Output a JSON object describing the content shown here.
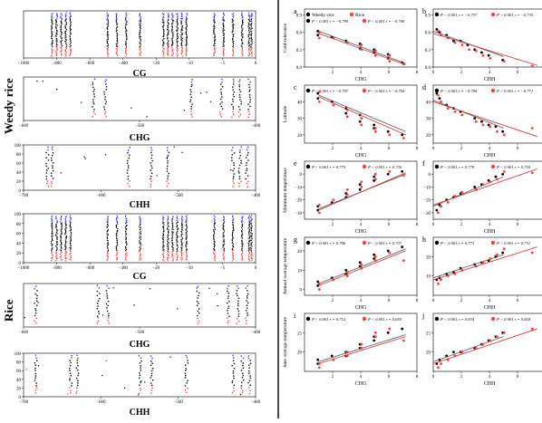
{
  "left_group_labels": [
    "Weedy rice",
    "Rice"
  ],
  "colors": {
    "black": "#000000",
    "blue": "#3333ff",
    "red": "#ff4040",
    "line_black": "#555555",
    "line_red": "#d03030"
  },
  "chart_data": [
    {
      "id": "L1",
      "type": "scatter",
      "xlabel": "CG",
      "xticks": [
        "−1000",
        "−800",
        "−600",
        "−400",
        "−20",
        "−10",
        "−5",
        "0"
      ]
    },
    {
      "id": "L2",
      "type": "scatter",
      "xlabel": "CHG",
      "xticks": [
        "−840",
        "−500",
        "−400"
      ]
    },
    {
      "id": "L3",
      "type": "scatter",
      "xlabel": "CHH",
      "yticks": [
        "0",
        "20",
        "40",
        "60",
        "80",
        "100"
      ],
      "xticks": [
        "−700",
        "−600",
        "−500",
        "−400"
      ]
    },
    {
      "id": "L4",
      "type": "scatter",
      "xlabel": "CG",
      "yticks": [
        "0",
        "20",
        "40",
        "60",
        "80",
        "100"
      ],
      "xticks": [
        "−1000",
        "−800",
        "−600",
        "−400",
        "−20",
        "−10",
        "−5",
        "0"
      ]
    },
    {
      "id": "L5",
      "type": "scatter",
      "xlabel": "CHG",
      "xticks": [
        "−840",
        "−500",
        "−400"
      ]
    },
    {
      "id": "L6",
      "type": "scatter",
      "xlabel": "CHH",
      "yticks": [
        "0",
        "20",
        "40",
        "60",
        "80",
        "100"
      ],
      "xticks": [
        "−700",
        "−600",
        "−500",
        "−400"
      ]
    },
    {
      "id": "a",
      "type": "scatter",
      "xlabel": "CHG",
      "ylabel": "Cold-tolerance",
      "xticks": [
        "2",
        "4",
        "6",
        "8"
      ],
      "yticks": [
        "0.0",
        "0.3",
        "0.6",
        "0.9"
      ],
      "xlim": [
        0,
        8
      ],
      "ylim": [
        0,
        1.0
      ],
      "legend": [
        {
          "label": "Weedy rice",
          "color": "black"
        },
        {
          "label": "Rice",
          "color": "red"
        }
      ],
      "stats": [
        "P < 0.001  r = −0.790",
        "P < 0.001  r = −0.740"
      ],
      "series": [
        {
          "name": "Weedy rice",
          "color": "black",
          "x": [
            1,
            1,
            2,
            3,
            4,
            4,
            5,
            5,
            6,
            6,
            7
          ],
          "y": [
            0.62,
            0.55,
            0.52,
            0.45,
            0.4,
            0.32,
            0.3,
            0.25,
            0.22,
            0.15,
            0.08
          ],
          "fit": [
            [
              1,
              0.62
            ],
            [
              7.2,
              0.06
            ]
          ]
        },
        {
          "name": "Rice",
          "color": "red",
          "x": [
            1,
            1,
            2,
            3,
            4,
            4,
            5,
            5,
            6,
            6,
            7
          ],
          "y": [
            0.6,
            0.5,
            0.5,
            0.42,
            0.38,
            0.3,
            0.28,
            0.2,
            0.2,
            0.1,
            0.05
          ],
          "fit": [
            [
              1,
              0.58
            ],
            [
              7.2,
              0.04
            ]
          ]
        }
      ]
    },
    {
      "id": "b",
      "type": "scatter",
      "xlabel": "CHH",
      "xticks": [
        "0",
        "2",
        "4",
        "6",
        "8"
      ],
      "yticks": [
        "0.0",
        "0.3",
        "0.6",
        "0.9"
      ],
      "xlim": [
        0,
        8
      ],
      "ylim": [
        0,
        1.0
      ],
      "stats": [
        "P < 0.001  r = −0.757",
        "P < 0.001  r = −0.735"
      ],
      "series": [
        {
          "color": "black",
          "x": [
            0.3,
            0.5,
            1,
            1.5,
            2,
            2.5,
            3,
            3.5,
            4,
            5
          ],
          "y": [
            0.65,
            0.6,
            0.55,
            0.45,
            0.45,
            0.38,
            0.3,
            0.25,
            0.2,
            0.12
          ],
          "fit": [
            [
              0,
              0.62
            ],
            [
              5,
              0.18
            ]
          ]
        },
        {
          "color": "red",
          "x": [
            0.3,
            0.5,
            1,
            1.5,
            2,
            2.5,
            3,
            3.5,
            4,
            5,
            7
          ],
          "y": [
            0.62,
            0.55,
            0.5,
            0.42,
            0.38,
            0.3,
            0.28,
            0.2,
            0.15,
            0.1,
            0.02
          ],
          "fit": [
            [
              0,
              0.58
            ],
            [
              7.4,
              0.03
            ]
          ]
        }
      ]
    },
    {
      "id": "c",
      "type": "scatter",
      "xlabel": "CHG",
      "ylabel": "Latitude",
      "xticks": [
        "2",
        "4",
        "6",
        "8"
      ],
      "yticks": [
        "20",
        "30",
        "40"
      ],
      "xlim": [
        0,
        8
      ],
      "ylim": [
        15,
        50
      ],
      "stats": [
        "P < 0.001  r = −0.797",
        "P < 0.001  r = −0.754"
      ],
      "series": [
        {
          "color": "black",
          "x": [
            1,
            1,
            2,
            3,
            3,
            4,
            4,
            5,
            5,
            6,
            7
          ],
          "y": [
            45,
            42,
            40,
            36,
            33,
            32,
            28,
            26,
            24,
            22,
            20
          ],
          "fit": [
            [
              1,
              44
            ],
            [
              7.2,
              22
            ]
          ]
        },
        {
          "color": "red",
          "x": [
            1,
            1,
            2,
            3,
            3,
            4,
            4,
            5,
            5,
            6,
            7
          ],
          "y": [
            46,
            40,
            38,
            35,
            31,
            30,
            26,
            24,
            22,
            20,
            18
          ],
          "fit": [
            [
              1,
              43
            ],
            [
              7.2,
              20
            ]
          ]
        }
      ]
    },
    {
      "id": "d",
      "type": "scatter",
      "xlabel": "CHH",
      "xticks": [
        "0",
        "2",
        "4",
        "6",
        "8"
      ],
      "yticks": [
        "20",
        "30",
        "40"
      ],
      "xlim": [
        0,
        8
      ],
      "ylim": [
        15,
        50
      ],
      "stats": [
        "P < 0.001  r = −0.794",
        "P < 0.001  r = −0.771"
      ],
      "series": [
        {
          "color": "black",
          "x": [
            0.3,
            0.5,
            1,
            1.5,
            2,
            3,
            3.5,
            4,
            4.5,
            5
          ],
          "y": [
            45,
            42,
            38,
            36,
            34,
            30,
            28,
            26,
            25,
            22
          ],
          "fit": [
            [
              0,
              41
            ],
            [
              5,
              24
            ]
          ]
        },
        {
          "color": "red",
          "x": [
            0.3,
            0.5,
            1,
            1.5,
            2,
            3,
            3.5,
            4,
            4.5,
            5,
            7
          ],
          "y": [
            44,
            40,
            36,
            34,
            32,
            28,
            26,
            25,
            22,
            20,
            24
          ],
          "fit": [
            [
              0,
              40
            ],
            [
              7.4,
              19
            ]
          ]
        }
      ]
    },
    {
      "id": "e",
      "type": "scatter",
      "xlabel": "CHG",
      "ylabel": "Minimum temperature",
      "xticks": [
        "2",
        "4",
        "6",
        "8"
      ],
      "yticks": [
        "−30",
        "−20",
        "−10",
        "0"
      ],
      "xlim": [
        0,
        8
      ],
      "ylim": [
        -35,
        10
      ],
      "stats": [
        "P < 0.001  r = 0.775",
        "P < 0.001  r = 0.730"
      ],
      "series": [
        {
          "color": "black",
          "x": [
            1,
            1,
            2,
            3,
            3,
            4,
            4,
            5,
            5,
            6,
            7
          ],
          "y": [
            -28,
            -25,
            -22,
            -18,
            -15,
            -12,
            -8,
            -5,
            -2,
            0,
            2
          ],
          "fit": [
            [
              1,
              -27
            ],
            [
              7.2,
              0
            ]
          ]
        },
        {
          "color": "red",
          "x": [
            1,
            1,
            2,
            3,
            3,
            4,
            4,
            5,
            5,
            6,
            7
          ],
          "y": [
            -30,
            -24,
            -20,
            -16,
            -12,
            -10,
            -6,
            -4,
            0,
            2,
            -1
          ],
          "fit": [
            [
              1,
              -28
            ],
            [
              7.2,
              1
            ]
          ]
        }
      ]
    },
    {
      "id": "f",
      "type": "scatter",
      "xlabel": "CHH",
      "xticks": [
        "0",
        "2",
        "4",
        "6",
        "8"
      ],
      "yticks": [
        "−30",
        "−20",
        "−10",
        "0"
      ],
      "xlim": [
        0,
        8
      ],
      "ylim": [
        -35,
        10
      ],
      "stats": [
        "P < 0.001  r = 0.779",
        "P < 0.001  r = 0.755"
      ],
      "series": [
        {
          "color": "black",
          "x": [
            0.3,
            0.5,
            1,
            1.5,
            2,
            3,
            3.5,
            4,
            4.5,
            5
          ],
          "y": [
            -28,
            -24,
            -20,
            -18,
            -15,
            -10,
            -8,
            -5,
            -2,
            0
          ],
          "fit": [
            [
              0,
              -25
            ],
            [
              5,
              -2
            ]
          ]
        },
        {
          "color": "red",
          "x": [
            0.3,
            0.5,
            1,
            1.5,
            2,
            3,
            3.5,
            4,
            4.5,
            5,
            7
          ],
          "y": [
            -30,
            -25,
            -22,
            -17,
            -14,
            -12,
            -8,
            -6,
            -4,
            2,
            1
          ],
          "fit": [
            [
              0,
              -24
            ],
            [
              7.4,
              4
            ]
          ]
        }
      ]
    },
    {
      "id": "g",
      "type": "scatter",
      "xlabel": "CHG",
      "ylabel": "Annual average temperature",
      "xticks": [
        "2",
        "4",
        "6",
        "8"
      ],
      "yticks": [
        "0",
        "10",
        "20"
      ],
      "xlim": [
        0,
        8
      ],
      "ylim": [
        -3,
        27
      ],
      "stats": [
        "P < 0.001  r = 0.786",
        "P < 0.001  r = 0.737"
      ],
      "series": [
        {
          "color": "black",
          "x": [
            1,
            1,
            2,
            3,
            3,
            4,
            4,
            5,
            5,
            6,
            7
          ],
          "y": [
            2,
            4,
            6,
            8,
            10,
            12,
            14,
            16,
            18,
            20,
            22
          ],
          "fit": [
            [
              1,
              3
            ],
            [
              7.2,
              21
            ]
          ]
        },
        {
          "color": "red",
          "x": [
            1,
            1,
            2,
            3,
            3,
            4,
            4,
            5,
            5,
            6,
            7
          ],
          "y": [
            0,
            3,
            5,
            7,
            9,
            11,
            13,
            15,
            17,
            19,
            15
          ],
          "fit": [
            [
              1,
              2
            ],
            [
              7.2,
              20
            ]
          ]
        }
      ]
    },
    {
      "id": "h",
      "type": "scatter",
      "xlabel": "CHH",
      "xticks": [
        "0",
        "2",
        "4",
        "6",
        "8"
      ],
      "yticks": [
        "10",
        "20"
      ],
      "xlim": [
        0,
        8
      ],
      "ylim": [
        0,
        30
      ],
      "stats": [
        "P < 0.001  r = 0.773",
        "P < 0.001  r = 0.731"
      ],
      "series": [
        {
          "color": "black",
          "x": [
            0.3,
            0.5,
            1,
            1.5,
            2,
            3,
            3.5,
            4,
            4.5,
            5
          ],
          "y": [
            8,
            9,
            11,
            12,
            14,
            16,
            17,
            18,
            20,
            22
          ],
          "fit": [
            [
              0,
              9
            ],
            [
              5,
              21
            ]
          ]
        },
        {
          "color": "red",
          "x": [
            0.3,
            0.5,
            1,
            1.5,
            2,
            3,
            3.5,
            4,
            4.5,
            5,
            7
          ],
          "y": [
            6,
            8,
            10,
            11,
            13,
            15,
            17,
            19,
            21,
            24,
            22
          ],
          "fit": [
            [
              0,
              8
            ],
            [
              7.4,
              25
            ]
          ]
        }
      ]
    },
    {
      "id": "i",
      "type": "scatter",
      "xlabel": "CHG",
      "ylabel": "June average temperature",
      "xticks": [
        "2",
        "4",
        "6",
        "8"
      ],
      "yticks": [
        "20",
        "25"
      ],
      "xlim": [
        0,
        8
      ],
      "ylim": [
        15,
        30
      ],
      "stats": [
        "P < 0.001  r = 0.712",
        "P < 0.001  r = 0.655"
      ],
      "series": [
        {
          "color": "black",
          "x": [
            1,
            1,
            2,
            3,
            3,
            4,
            4,
            5,
            5,
            6,
            7
          ],
          "y": [
            17,
            18,
            19,
            19,
            20,
            21,
            22,
            23,
            24,
            25,
            26
          ],
          "fit": [
            [
              1,
              17.5
            ],
            [
              7.2,
              24.5
            ]
          ]
        },
        {
          "color": "red",
          "x": [
            1,
            1,
            2,
            3,
            3,
            4,
            4,
            5,
            5,
            6,
            7
          ],
          "y": [
            16,
            17,
            18,
            19,
            20,
            21,
            22,
            24,
            25,
            26,
            23
          ],
          "fit": [
            [
              1,
              17
            ],
            [
              7.2,
              24
            ]
          ]
        }
      ]
    },
    {
      "id": "j",
      "type": "scatter",
      "xlabel": "CHH",
      "xticks": [
        "0",
        "2",
        "4",
        "6",
        "8"
      ],
      "yticks": [
        "20",
        "25"
      ],
      "xlim": [
        0,
        8
      ],
      "ylim": [
        15,
        30
      ],
      "stats": [
        "P < 0.001  r = 0.834",
        "P < 0.001  r = 0.818"
      ],
      "series": [
        {
          "color": "black",
          "x": [
            0.3,
            0.5,
            1,
            1.5,
            2,
            3,
            3.5,
            4,
            4.5,
            5
          ],
          "y": [
            17,
            18,
            19,
            20,
            20,
            21,
            22,
            23,
            24,
            25
          ],
          "fit": [
            [
              0,
              17.5
            ],
            [
              5,
              24
            ]
          ]
        },
        {
          "color": "red",
          "x": [
            0.3,
            0.5,
            1,
            1.5,
            2,
            3,
            3.5,
            4,
            4.5,
            5,
            7
          ],
          "y": [
            16,
            17,
            18,
            19,
            20,
            21,
            22,
            23,
            24,
            25,
            26
          ],
          "fit": [
            [
              0,
              17
            ],
            [
              7.4,
              26
            ]
          ]
        }
      ]
    }
  ]
}
